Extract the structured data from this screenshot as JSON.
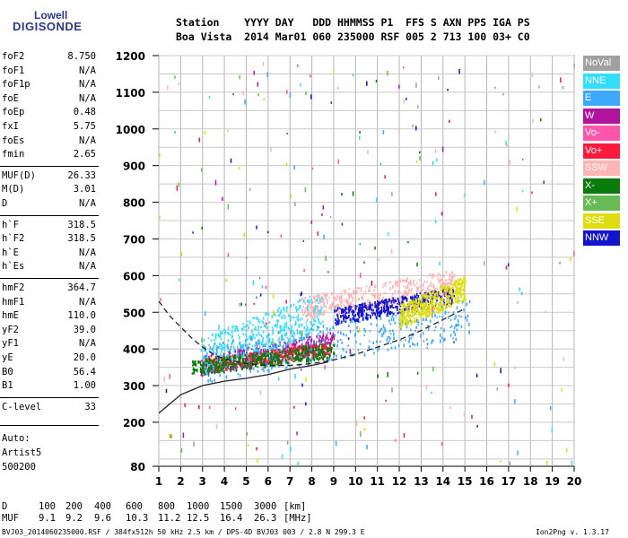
{
  "logo": {
    "line1": "Lowell",
    "line2": "DIGISONDE"
  },
  "header": {
    "row1": "Station    YYYY DAY   DDD HHMMSS P1  FFS S AXN PPS IGA PS",
    "row2": "Boa Vista  2014 Mar01 060 235000 RSF 005 2 713 100 03+ C0"
  },
  "params": [
    {
      "group": 1,
      "label": "foF2",
      "value": "8.750"
    },
    {
      "group": 1,
      "label": "foF1",
      "value": "N/A"
    },
    {
      "group": 1,
      "label": "foF1p",
      "value": "N/A"
    },
    {
      "group": 1,
      "label": "foE",
      "value": "N/A"
    },
    {
      "group": 1,
      "label": "foEp",
      "value": "0.48"
    },
    {
      "group": 1,
      "label": "fxI",
      "value": "5.75"
    },
    {
      "group": 1,
      "label": "foEs",
      "value": "N/A"
    },
    {
      "group": 1,
      "label": "fmin",
      "value": "2.65"
    },
    {
      "group": 2,
      "label": "MUF(D)",
      "value": "26.33"
    },
    {
      "group": 2,
      "label": "M(D)",
      "value": "3.01"
    },
    {
      "group": 2,
      "label": "D",
      "value": "N/A"
    },
    {
      "group": 3,
      "label": "h`F",
      "value": "318.5"
    },
    {
      "group": 3,
      "label": "h`F2",
      "value": "318.5"
    },
    {
      "group": 3,
      "label": "h`E",
      "value": "N/A"
    },
    {
      "group": 3,
      "label": "h`Es",
      "value": "N/A"
    },
    {
      "group": 4,
      "label": "hmF2",
      "value": "364.7"
    },
    {
      "group": 4,
      "label": "hmF1",
      "value": "N/A"
    },
    {
      "group": 4,
      "label": "hmE",
      "value": "110.0"
    },
    {
      "group": 4,
      "label": "yF2",
      "value": "39.0"
    },
    {
      "group": 4,
      "label": "yF1",
      "value": "N/A"
    },
    {
      "group": 4,
      "label": "yE",
      "value": "20.0"
    },
    {
      "group": 4,
      "label": "B0",
      "value": "56.4"
    },
    {
      "group": 4,
      "label": "B1",
      "value": "1.00"
    },
    {
      "group": 5,
      "label": "C-level",
      "value": "33"
    }
  ],
  "auto": {
    "line1": "Auto:",
    "line2": "Artist5",
    "line3": "500200"
  },
  "legend": [
    {
      "label": "NoVal",
      "color": "#a0a0a0"
    },
    {
      "label": "NNE",
      "color": "#33ddff"
    },
    {
      "label": "E",
      "color": "#3ca8ff"
    },
    {
      "label": "W",
      "color": "#b0149c"
    },
    {
      "label": "Vo-",
      "color": "#ff55aa"
    },
    {
      "label": "Vo+",
      "color": "#ff1a3c"
    },
    {
      "label": "SSW",
      "color": "#ffb4b4"
    },
    {
      "label": "X-",
      "color": "#0a7a0a"
    },
    {
      "label": "X+",
      "color": "#66bb55"
    },
    {
      "label": "SSE",
      "color": "#dddd11"
    },
    {
      "label": "NNW",
      "color": "#1414cc"
    }
  ],
  "footer": {
    "d_label": "D",
    "d_values": [
      "100",
      "200",
      "400",
      "600",
      "800",
      "1000",
      "1500",
      "3000",
      "[km]"
    ],
    "muf_label": "MUF",
    "muf_values": [
      "9.1",
      "9.2",
      "9.6",
      "10.3",
      "11.2",
      "12.5",
      "16.4",
      "26.3",
      "[MHz]"
    ],
    "file_info": "BVJ03_2014060235000.RSF / 384fx512h 50 kHz 2.5 km / DPS-4D BVJ03 003 / 2.8 N 299.3 E",
    "version": "Ion2Png v. 1.3.17"
  },
  "chart_data": {
    "type": "scatter",
    "xlabel": "",
    "ylabel": "",
    "xlim": [
      1,
      20
    ],
    "ylim": [
      80,
      1200
    ],
    "x_ticks": [
      1,
      2,
      3,
      4,
      5,
      6,
      7,
      8,
      9,
      10,
      11,
      12,
      13,
      14,
      15,
      16,
      17,
      18,
      19,
      20
    ],
    "y_ticks": [
      80,
      200,
      300,
      400,
      500,
      600,
      700,
      800,
      900,
      1000,
      1100,
      1200
    ],
    "grid": true,
    "legend_position": "right",
    "trace_groups": [
      {
        "name": "W",
        "color": "#b0149c",
        "x_range": [
          2.9,
          9.0
        ],
        "y_range": [
          330,
          450
        ]
      },
      {
        "name": "Vo+",
        "color": "#ff1a3c",
        "x_range": [
          3.0,
          8.8
        ],
        "y_range": [
          340,
          420
        ]
      },
      {
        "name": "NNE",
        "color": "#33ddff",
        "x_range": [
          2.9,
          8.5
        ],
        "y_range": [
          330,
          560
        ]
      },
      {
        "name": "E",
        "color": "#3ca8ff",
        "x_range": [
          3.0,
          15.2
        ],
        "y_range": [
          310,
          540
        ]
      },
      {
        "name": "SSW",
        "color": "#ffb4b4",
        "x_range": [
          7.5,
          14.5
        ],
        "y_range": [
          480,
          620
        ]
      },
      {
        "name": "NNW",
        "color": "#1414cc",
        "x_range": [
          9.0,
          14.5
        ],
        "y_range": [
          470,
          570
        ]
      },
      {
        "name": "SSE",
        "color": "#dddd11",
        "x_range": [
          12.0,
          15.0
        ],
        "y_range": [
          460,
          600
        ]
      },
      {
        "name": "X-",
        "color": "#0a7a0a",
        "x_range": [
          2.5,
          9.0
        ],
        "y_range": [
          330,
          420
        ]
      }
    ],
    "profile_line": {
      "color": "#222222",
      "points": [
        [
          1.0,
          225
        ],
        [
          1.5,
          250
        ],
        [
          2.0,
          275
        ],
        [
          3.0,
          300
        ],
        [
          4.0,
          312
        ],
        [
          5.0,
          320
        ],
        [
          6.0,
          330
        ],
        [
          7.0,
          345
        ],
        [
          8.0,
          355
        ],
        [
          8.75,
          364.7
        ]
      ]
    },
    "muf_curve": {
      "color": "#222222",
      "points": [
        [
          1.0,
          530
        ],
        [
          1.5,
          490
        ],
        [
          2.0,
          460
        ],
        [
          2.5,
          430
        ],
        [
          3.0,
          405
        ],
        [
          3.5,
          385
        ],
        [
          4.0,
          372
        ],
        [
          5.0,
          360
        ],
        [
          6.0,
          355
        ],
        [
          7.0,
          355
        ],
        [
          8.0,
          360
        ],
        [
          9.0,
          370
        ],
        [
          10.0,
          385
        ],
        [
          11.0,
          405
        ],
        [
          12.0,
          425
        ],
        [
          13.0,
          450
        ],
        [
          14.0,
          480
        ],
        [
          15.0,
          510
        ]
      ]
    }
  }
}
